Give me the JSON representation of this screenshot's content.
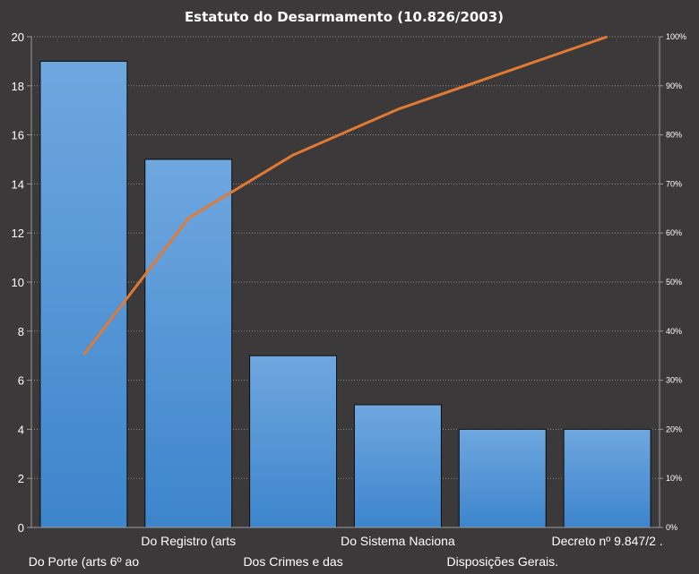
{
  "chart_data": {
    "type": "bar",
    "title": "Estatuto do Desarmamento (10.826/2003)",
    "categories": [
      "Do Porte (arts 6º ao",
      "Do Registro (arts",
      "Dos Crimes e das",
      "Do Sistema Naciona",
      "Disposições Gerais.",
      "Decreto nº 9.847/2 ."
    ],
    "series": [
      {
        "type": "bar",
        "values": [
          19,
          15,
          7,
          5,
          4,
          4
        ]
      },
      {
        "type": "line",
        "axis": "right",
        "values": [
          35.2,
          63.0,
          75.9,
          85.2,
          92.6,
          100
        ]
      }
    ],
    "ylim": [
      0,
      20
    ],
    "y_ticks": [
      "0",
      "2",
      "4",
      "6",
      "8",
      "10",
      "12",
      "14",
      "16",
      "18",
      "20"
    ],
    "y2lim": [
      0,
      100
    ],
    "y2_ticks": [
      "0%",
      "10%",
      "20%",
      "30%",
      "40%",
      "50%",
      "60%",
      "70%",
      "80%",
      "90%",
      "100%"
    ],
    "grid": true,
    "legend": "none",
    "colors": {
      "background": "#3b3939",
      "bar_top": "#6fa7df",
      "bar_bottom": "#3d85cc",
      "line": "#e07a34",
      "grid": "#8c8c8c",
      "text": "#ffffff"
    }
  }
}
